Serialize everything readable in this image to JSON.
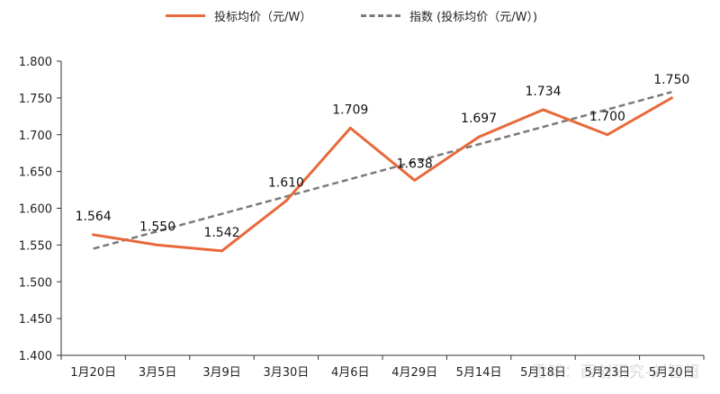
{
  "chart_data": {
    "type": "line",
    "categories": [
      "1月20日",
      "3月5日",
      "3月9日",
      "3月30日",
      "4月6日",
      "4月29日",
      "5月14日",
      "5月18日",
      "5月23日",
      "5月20日"
    ],
    "series": [
      {
        "name": "投标均价（元/W）",
        "values": [
          1.564,
          1.55,
          1.542,
          1.61,
          1.709,
          1.638,
          1.697,
          1.734,
          1.7,
          1.75
        ],
        "data_labels": [
          "1.564",
          "1.550",
          "1.542",
          "1.610",
          "1.709",
          "1.638",
          "1.697",
          "1.734",
          "1.700",
          "1.750"
        ],
        "color": "#e8693a",
        "style": "solid"
      },
      {
        "name": "指数 (投标均价（元/W）)",
        "trend_start": 1.545,
        "trend_end": 1.758,
        "color": "#7a7a7a",
        "style": "dashed"
      }
    ],
    "ylim": [
      1.4,
      1.8
    ],
    "yticks": [
      "1.400",
      "1.450",
      "1.500",
      "1.550",
      "1.600",
      "1.650",
      "1.700",
      "1.750",
      "1.800"
    ],
    "legend_position": "top",
    "grid": false
  },
  "watermark": "雪球：西创研究-刘智超"
}
